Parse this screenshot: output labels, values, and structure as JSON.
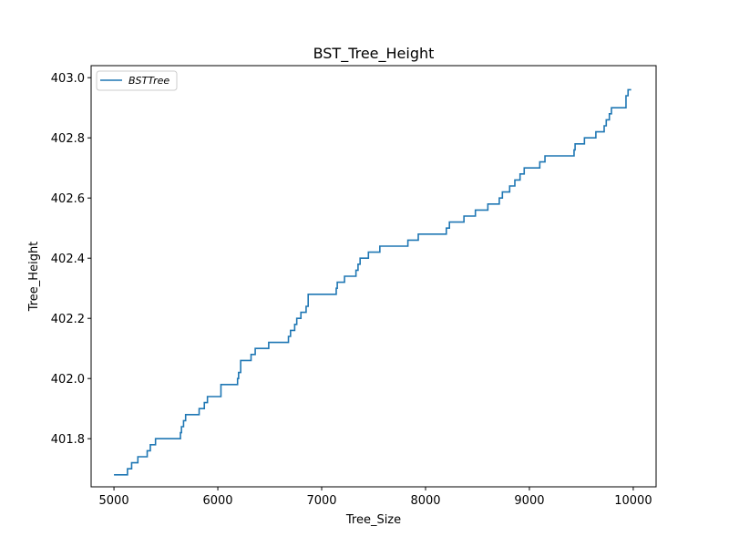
{
  "chart_data": {
    "type": "line",
    "title": "BST_Tree_Height",
    "xlabel": "Tree_Size",
    "ylabel": "Tree_Height",
    "xlim": [
      4780,
      10220
    ],
    "ylim": [
      401.64,
      403.04
    ],
    "xticks": [
      5000,
      6000,
      7000,
      8000,
      9000,
      10000
    ],
    "xtick_labels": [
      "5000",
      "6000",
      "7000",
      "8000",
      "9000",
      "10000"
    ],
    "yticks": [
      401.8,
      402.0,
      402.2,
      402.4,
      402.6,
      402.8,
      403.0
    ],
    "ytick_labels": [
      "401.8",
      "402.0",
      "402.2",
      "402.4",
      "402.6",
      "402.8",
      "403.0"
    ],
    "grid": false,
    "legend": "top-left",
    "series": [
      {
        "name": "BSTTree",
        "color": "#1f77b4",
        "step": "post",
        "x": [
          5000,
          5130,
          5170,
          5230,
          5320,
          5350,
          5400,
          5640,
          5650,
          5670,
          5690,
          5820,
          5870,
          5900,
          6030,
          6190,
          6200,
          6220,
          6320,
          6360,
          6490,
          6680,
          6700,
          6740,
          6760,
          6800,
          6850,
          6870,
          7140,
          7150,
          7220,
          7330,
          7350,
          7370,
          7450,
          7560,
          7830,
          7930,
          8200,
          8230,
          8250,
          8370,
          8480,
          8600,
          8610,
          8710,
          8740,
          8780,
          8810,
          8860,
          8910,
          8950,
          9100,
          9150,
          9430,
          9440,
          9460,
          9530,
          9640,
          9720,
          9740,
          9770,
          9790,
          9930,
          9950,
          9980
        ],
        "y": [
          401.68,
          401.7,
          401.72,
          401.74,
          401.76,
          401.78,
          401.8,
          401.82,
          401.84,
          401.86,
          401.88,
          401.9,
          401.92,
          401.94,
          401.98,
          402.0,
          402.02,
          402.06,
          402.08,
          402.1,
          402.12,
          402.14,
          402.16,
          402.18,
          402.2,
          402.22,
          402.24,
          402.28,
          402.3,
          402.32,
          402.34,
          402.36,
          402.38,
          402.4,
          402.42,
          402.44,
          402.46,
          402.48,
          402.5,
          402.52,
          402.52,
          402.54,
          402.56,
          402.58,
          402.58,
          402.6,
          402.62,
          402.62,
          402.64,
          402.66,
          402.68,
          402.7,
          402.72,
          402.74,
          402.76,
          402.78,
          402.78,
          402.8,
          402.82,
          402.84,
          402.86,
          402.88,
          402.9,
          402.94,
          402.96,
          402.96
        ]
      }
    ]
  }
}
